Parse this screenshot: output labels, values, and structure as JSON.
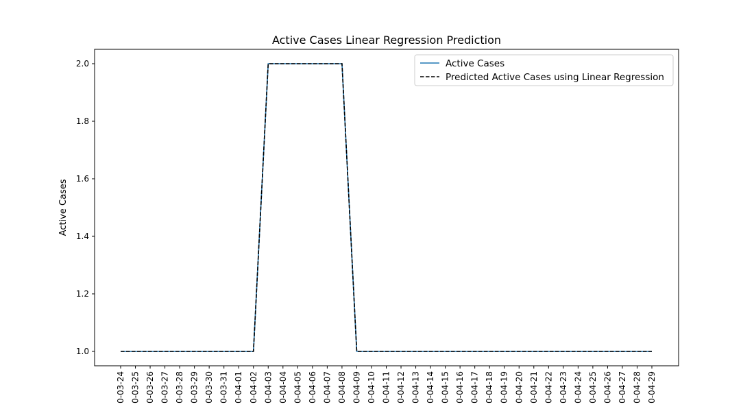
{
  "chart_data": {
    "type": "line",
    "title": "Active Cases Linear Regression Prediction",
    "xlabel": "",
    "ylabel": "Active Cases",
    "categories": [
      "0-03-24",
      "0-03-25",
      "0-03-26",
      "0-03-27",
      "0-03-28",
      "0-03-29",
      "0-03-30",
      "0-03-31",
      "0-04-01",
      "0-04-02",
      "0-04-03",
      "0-04-04",
      "0-04-05",
      "0-04-06",
      "0-04-07",
      "0-04-08",
      "0-04-09",
      "0-04-10",
      "0-04-11",
      "0-04-12",
      "0-04-13",
      "0-04-14",
      "0-04-15",
      "0-04-16",
      "0-04-17",
      "0-04-18",
      "0-04-19",
      "0-04-20",
      "0-04-21",
      "0-04-22",
      "0-04-23",
      "0-04-24",
      "0-04-25",
      "0-04-26",
      "0-04-27",
      "0-04-28",
      "0-04-29"
    ],
    "series": [
      {
        "name": "Active Cases",
        "color": "#1f77b4",
        "style": "solid",
        "values": [
          1,
          1,
          1,
          1,
          1,
          1,
          1,
          1,
          1,
          1,
          2,
          2,
          2,
          2,
          2,
          2,
          1,
          1,
          1,
          1,
          1,
          1,
          1,
          1,
          1,
          1,
          1,
          1,
          1,
          1,
          1,
          1,
          1,
          1,
          1,
          1,
          1
        ]
      },
      {
        "name": "Predicted Active Cases using Linear Regression",
        "color": "#000000",
        "style": "dashed",
        "values": [
          1,
          1,
          1,
          1,
          1,
          1,
          1,
          1,
          1,
          1,
          2,
          2,
          2,
          2,
          2,
          2,
          1,
          1,
          1,
          1,
          1,
          1,
          1,
          1,
          1,
          1,
          1,
          1,
          1,
          1,
          1,
          1,
          1,
          1,
          1,
          1,
          1
        ]
      }
    ],
    "yticks": [
      "1.0",
      "1.2",
      "1.4",
      "1.6",
      "1.8",
      "2.0"
    ],
    "ylim": [
      0.95,
      2.05
    ],
    "grid": false,
    "legend_position": "upper-right"
  }
}
